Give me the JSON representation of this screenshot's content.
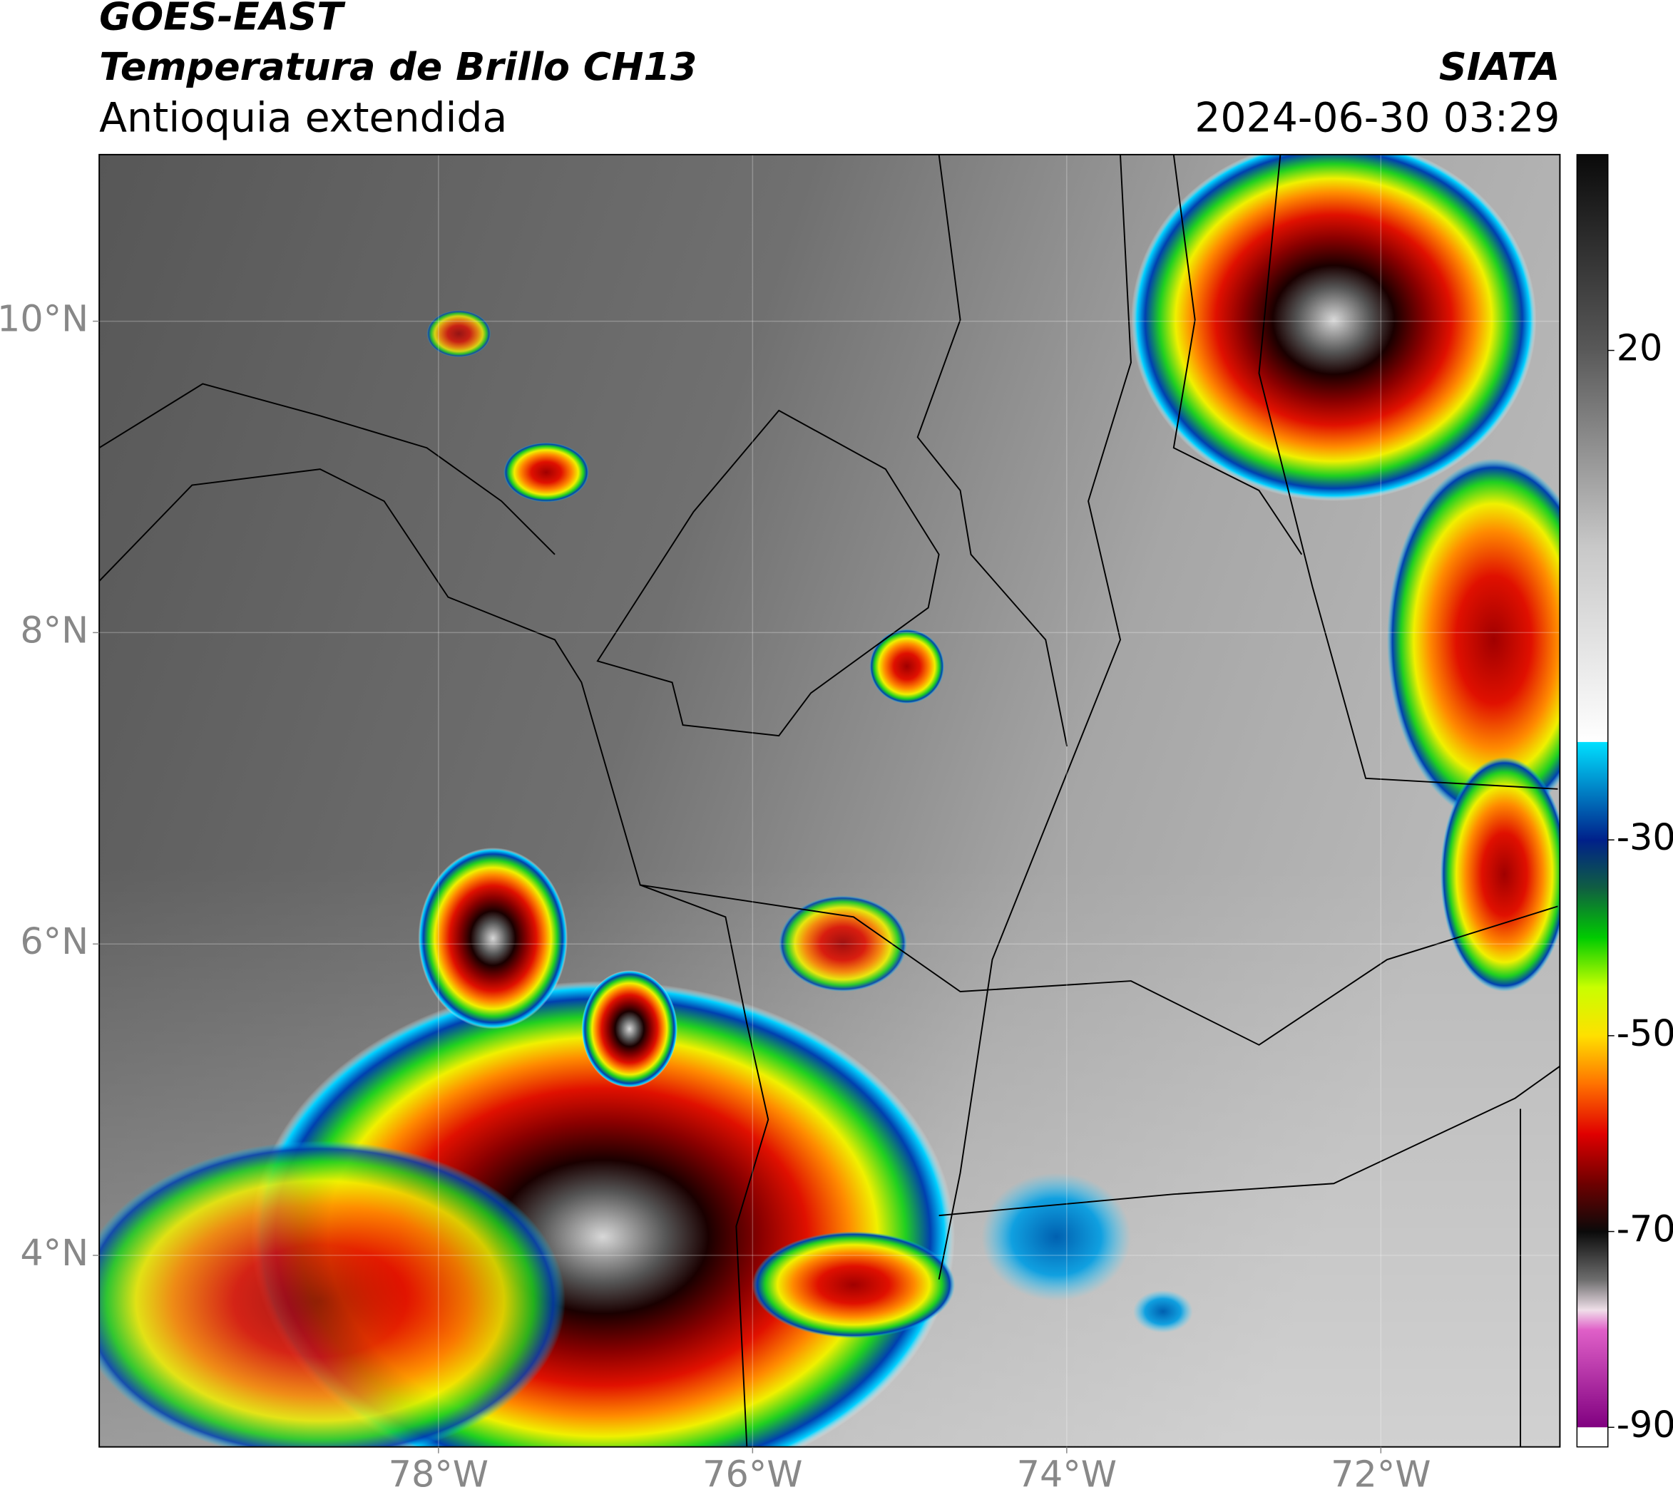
{
  "chart_data": {
    "type": "map",
    "title": "GOES-EAST",
    "subtitle": "Temperatura de Brillo CH13",
    "region": "Antioquia extendida",
    "source": "SIATA",
    "datetime": "2024-06-30 03:29",
    "xlim": [
      -80.16,
      -70.86
    ],
    "ylim": [
      2.77,
      11.07
    ],
    "xticks": [
      {
        "value": -78,
        "label": "78°W"
      },
      {
        "value": -76,
        "label": "76°W"
      },
      {
        "value": -74,
        "label": "74°W"
      },
      {
        "value": -72,
        "label": "72°W"
      }
    ],
    "yticks": [
      {
        "value": 10,
        "label": "10°N"
      },
      {
        "value": 8,
        "label": "8°N"
      },
      {
        "value": 6,
        "label": "6°N"
      },
      {
        "value": 4,
        "label": "4°N"
      }
    ],
    "grid": true,
    "colorbar": {
      "lim": [
        -92,
        40
      ],
      "ticks": [
        20,
        -30,
        -50,
        -70,
        -90
      ],
      "colormap": [
        {
          "value": 40,
          "color": "#0a0a0a"
        },
        {
          "value": 20,
          "color": "#595959"
        },
        {
          "value": 0,
          "color": "#c8c8c8"
        },
        {
          "value": -20,
          "color": "#ffffff"
        },
        {
          "value": -20,
          "color": "#00e0ff"
        },
        {
          "value": -30,
          "color": "#00208a"
        },
        {
          "value": -35,
          "color": "#106040"
        },
        {
          "value": -40,
          "color": "#00cc00"
        },
        {
          "value": -45,
          "color": "#c8ff00"
        },
        {
          "value": -50,
          "color": "#ffe000"
        },
        {
          "value": -55,
          "color": "#ff7000"
        },
        {
          "value": -60,
          "color": "#e00000"
        },
        {
          "value": -65,
          "color": "#700000"
        },
        {
          "value": -70,
          "color": "#0a0a0a"
        },
        {
          "value": -75,
          "color": "#707070"
        },
        {
          "value": -78,
          "color": "#f0e0ea"
        },
        {
          "value": -80,
          "color": "#e060c8"
        },
        {
          "value": -90,
          "color": "#800080"
        },
        {
          "value": -90,
          "color": "#ffffff"
        },
        {
          "value": -92,
          "color": "#ffffff"
        }
      ]
    }
  }
}
